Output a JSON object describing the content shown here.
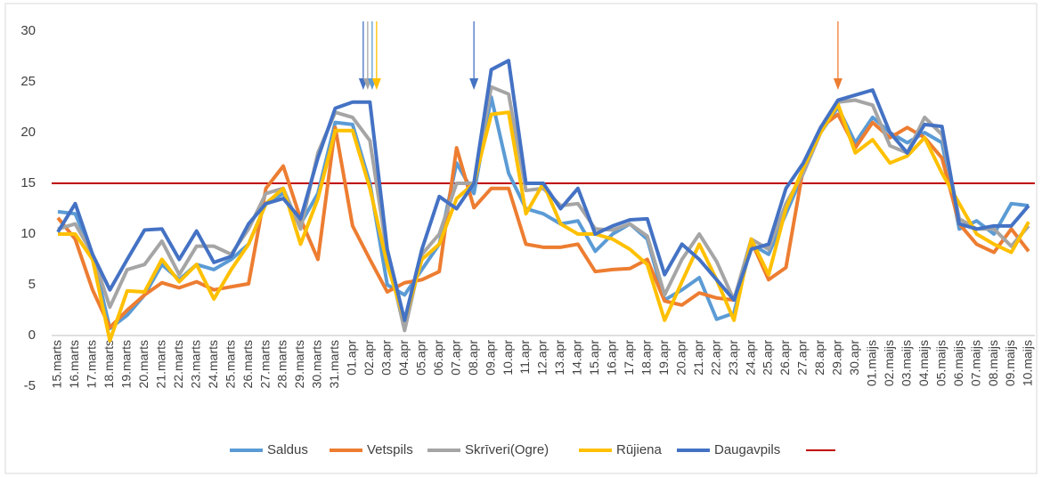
{
  "chart_data": {
    "type": "line",
    "categories": [
      "15.marts",
      "16.marts",
      "17.marts",
      "18.marts",
      "19.marts",
      "20.marts",
      "21.marts",
      "22.marts",
      "23.marts",
      "24.marts",
      "25.marts",
      "26.marts",
      "27.marts",
      "28.marts",
      "29.marts",
      "30.marts",
      "31.marts",
      "01.apr",
      "02.apr",
      "03.apr",
      "04.apr",
      "05.apr",
      "06.apr",
      "07.apr",
      "08.apr",
      "09.apr",
      "10.apr",
      "11.apr",
      "12.apr",
      "13.apr",
      "14.apr",
      "15.apr",
      "16.apr",
      "17.apr",
      "18.apr",
      "19.apr",
      "20.apr",
      "21.apr",
      "22.apr",
      "23.apr",
      "24.apr",
      "25.apr",
      "26.apr",
      "27.apr",
      "28.apr",
      "29.apr",
      "30.apr",
      "01.maijs",
      "02.maijs",
      "03.maijs",
      "04.maijs",
      "05.maijs",
      "06.maijs",
      "07.maijs",
      "08.maijs",
      "09.maijs",
      "10.maijs"
    ],
    "series": [
      {
        "name": "Saldus",
        "color": "#5b9bd5",
        "values": [
          12.2,
          12,
          8,
          0.7,
          2,
          4,
          7,
          5.5,
          7,
          6.5,
          7.5,
          9,
          13,
          14,
          11,
          14,
          21,
          20.8,
          15,
          5,
          4,
          6.5,
          9,
          17,
          14,
          23.5,
          16,
          12.5,
          12,
          11,
          11.3,
          8.3,
          10,
          11,
          9.5,
          3.5,
          4.5,
          5.7,
          1.6,
          2.2,
          9,
          8,
          12,
          16,
          20,
          22.5,
          19,
          21.5,
          20,
          19,
          20,
          19,
          10.5,
          11.3,
          10,
          13,
          12.8
        ]
      },
      {
        "name": "Vetspils",
        "color": "#ed7d31",
        "values": [
          11.6,
          9.5,
          4.5,
          0.8,
          2.5,
          4,
          5.2,
          4.7,
          5.3,
          4.5,
          4.8,
          5.1,
          14.5,
          16.7,
          11.5,
          7.5,
          20.5,
          10.8,
          7.5,
          4.3,
          5.2,
          5.5,
          6.3,
          18.5,
          12.6,
          14.5,
          14.5,
          9,
          8.7,
          8.7,
          9,
          6.3,
          6.5,
          6.6,
          7.5,
          3.4,
          3,
          4.2,
          3.7,
          3.5,
          9.3,
          5.5,
          6.7,
          16.5,
          20.5,
          21.8,
          18.5,
          21,
          19.5,
          20.5,
          19.5,
          17.5,
          11,
          9,
          8.2,
          10.5,
          8.3
        ]
      },
      {
        "name": "Skrīveri(Ogre)",
        "color": "#a5a5a5",
        "values": [
          10.5,
          11,
          8,
          2.8,
          6.5,
          7,
          9.3,
          6,
          8.8,
          8.8,
          8,
          10.5,
          14,
          14.5,
          10.5,
          18,
          22,
          21.5,
          19.2,
          8,
          0.5,
          8,
          10,
          15,
          15,
          24.5,
          23.8,
          14.3,
          14.5,
          12.8,
          13,
          10.5,
          10.4,
          11,
          9.8,
          4,
          7.5,
          10,
          7.3,
          3.5,
          9.5,
          8.5,
          13,
          16,
          20,
          23,
          23.2,
          22.7,
          18.7,
          18,
          21.5,
          19.8,
          11.5,
          10.5,
          10.5,
          8.8,
          10.8
        ]
      },
      {
        "name": "Rūjiena",
        "color": "#ffc000",
        "values": [
          10,
          10,
          7.5,
          -0.5,
          4.4,
          4.3,
          7.5,
          5.3,
          7,
          3.6,
          6.5,
          9,
          13,
          14.5,
          9,
          13.5,
          20.2,
          20.2,
          14.5,
          7,
          1.5,
          7.5,
          9,
          13.5,
          15,
          21.8,
          22,
          12,
          15,
          11,
          10,
          10,
          9.5,
          8.5,
          7,
          1.5,
          5.3,
          9,
          5.5,
          1.5,
          9.5,
          6,
          12.5,
          16.5,
          20,
          22.8,
          18,
          19.3,
          17,
          17.7,
          19.5,
          16,
          13,
          10,
          9,
          8.2,
          11.2
        ]
      },
      {
        "name": "Daugavpils",
        "color": "#4472c4",
        "values": [
          10.2,
          13,
          8,
          4.5,
          7.5,
          10.4,
          10.5,
          7.5,
          10.3,
          7.2,
          7.8,
          11,
          13,
          13.5,
          11.5,
          17.5,
          22.4,
          23,
          23,
          8.5,
          1.5,
          8.5,
          13.7,
          12.5,
          15,
          26.2,
          27.1,
          15,
          15,
          12.5,
          14.5,
          10,
          10.8,
          11.4,
          11.5,
          6,
          9,
          7.5,
          5.5,
          3.5,
          8.5,
          9,
          14.5,
          17,
          20.5,
          23.2,
          23.7,
          24.2,
          20,
          18,
          20.8,
          20.6,
          11,
          10.5,
          10.8,
          10.8,
          12.8
        ]
      }
    ],
    "threshold": {
      "value": 15,
      "color": "#c00000"
    },
    "arrows": [
      {
        "x": "02.apr",
        "color": "#4472c4"
      },
      {
        "x": "02.apr",
        "color": "#a5a5a5"
      },
      {
        "x": "02.apr",
        "color": "#5b9bd5"
      },
      {
        "x": "02.apr",
        "color": "#ffc000"
      },
      {
        "x": "08.apr",
        "color": "#4472c4"
      },
      {
        "x": "29.apr",
        "color": "#ed7d31"
      }
    ],
    "ylim": [
      -5,
      30
    ],
    "yticks": [
      -5,
      0,
      5,
      10,
      15,
      20,
      25,
      30
    ],
    "grid": false
  }
}
